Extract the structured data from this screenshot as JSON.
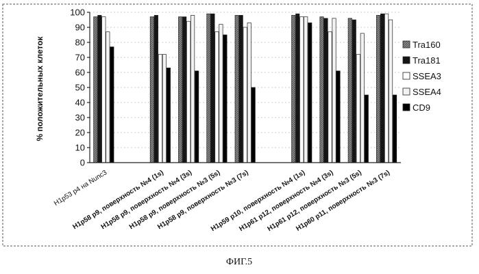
{
  "caption": "ФИГ.5",
  "colors": {
    "Tra160": "#8a8a8a",
    "Tra181": "#151515",
    "SSEA3": "#ffffff",
    "SSEA4": "#f2f2f2",
    "CD9": "#000000"
  },
  "chart_data": {
    "type": "bar",
    "ylabel": "% положительных клеток",
    "ylim": [
      0,
      100
    ],
    "yticks": [
      0,
      10,
      20,
      30,
      40,
      50,
      60,
      70,
      80,
      90,
      100
    ],
    "grid": true,
    "legend_position": "right",
    "categories": [
      "H1p53 p4 на Nunc3",
      "",
      "H1p58 p9, поверхность №4 (1s)",
      "H1p58 p9, поверхность №4 (3s)",
      "H1p58 p9, поверхность №3 (5s)",
      "H1p58 p9, поверхность №3 (7s)",
      "",
      "H1p59 p10, поверхность №4 (1s)",
      "H1p61 p12, поверхность №4 (3s)",
      "H1p61 p12, поверхность №3 (5s)",
      "H1p60 p11, поверхность №3 (7s)"
    ],
    "series": [
      {
        "name": "Tra160",
        "values": [
          97,
          null,
          97,
          97,
          99,
          98,
          null,
          98,
          97,
          96,
          98
        ]
      },
      {
        "name": "Tra181",
        "values": [
          98,
          null,
          98,
          97,
          99,
          98,
          null,
          99,
          96,
          95,
          99
        ]
      },
      {
        "name": "SSEA3",
        "values": [
          97,
          null,
          72,
          94,
          87,
          90,
          null,
          97,
          87,
          72,
          99
        ]
      },
      {
        "name": "SSEA4",
        "values": [
          87,
          null,
          72,
          98,
          92,
          93,
          null,
          97,
          96,
          86,
          95
        ]
      },
      {
        "name": "CD9",
        "values": [
          77,
          null,
          63,
          61,
          85,
          50,
          null,
          93,
          61,
          45,
          45
        ]
      }
    ]
  }
}
